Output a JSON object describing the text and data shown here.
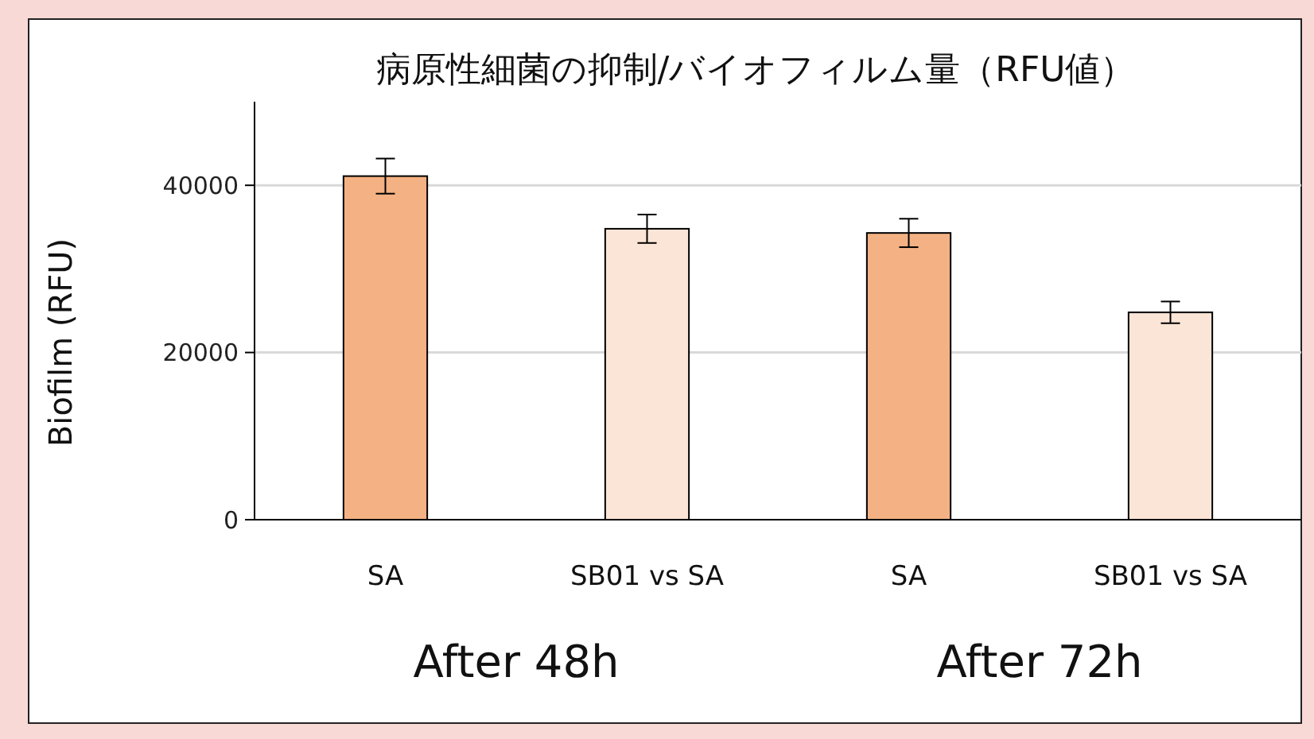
{
  "chart_data": {
    "type": "bar",
    "title": "病原性細菌の抑制/バイオフィルム量（RFU値）",
    "ylabel": "Biofilm (RFU)",
    "categories": [
      "SA",
      "SB01 vs SA",
      "SA",
      "SB01 vs SA"
    ],
    "values": [
      41100,
      34800,
      34300,
      24800
    ],
    "colors": [
      "#f4b183",
      "#fbe5d6",
      "#f4b183",
      "#fbe5d6"
    ],
    "errors": [
      2100,
      1700,
      1700,
      1300
    ],
    "annotations": [
      "After 48h",
      "After 72h"
    ],
    "ylim": [
      0,
      50000
    ],
    "yticks": [
      0,
      20000,
      40000
    ],
    "grid": "y"
  }
}
